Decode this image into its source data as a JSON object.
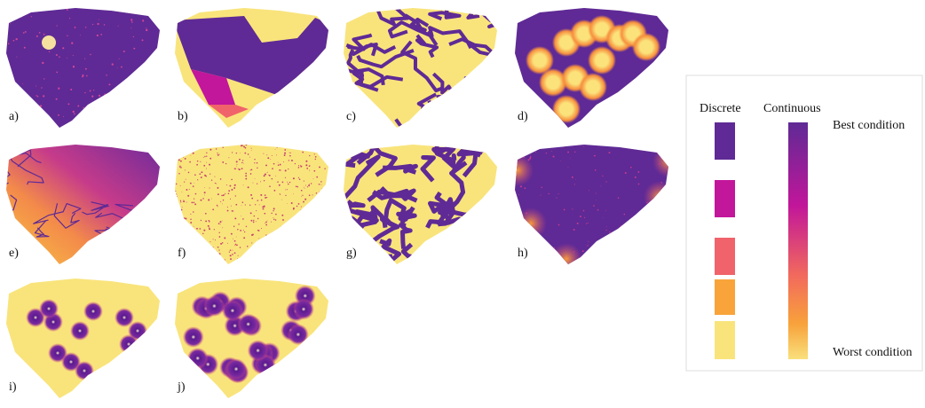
{
  "panels": [
    {
      "label": "a)"
    },
    {
      "label": "b)"
    },
    {
      "label": "c)"
    },
    {
      "label": "d)"
    },
    {
      "label": "e)"
    },
    {
      "label": "f)"
    },
    {
      "label": "g)"
    },
    {
      "label": "h)"
    },
    {
      "label": "i)"
    },
    {
      "label": "j)"
    }
  ],
  "legend": {
    "discrete_title": "Discrete",
    "continuous_title": "Continuous",
    "best": "Best condition",
    "worst": "Worst condition"
  }
}
